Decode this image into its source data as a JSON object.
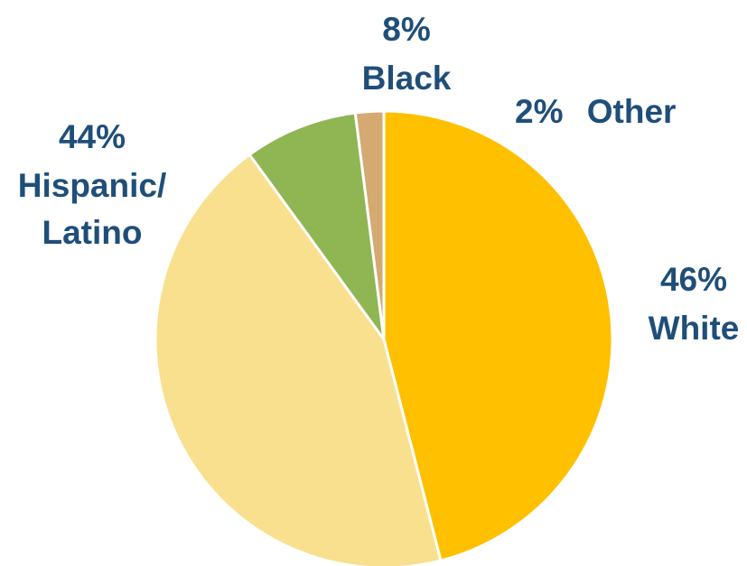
{
  "chart_data": {
    "type": "pie",
    "title": "",
    "slices": [
      {
        "pct_label": "46%",
        "name": "White",
        "name_line2": "",
        "value": 46,
        "color": "#ffc000",
        "inline": false
      },
      {
        "pct_label": "44%",
        "name": "Hispanic/",
        "name_line2": "Latino",
        "value": 44,
        "color": "#f8e08e",
        "inline": false
      },
      {
        "pct_label": "8%",
        "name": "Black",
        "name_line2": "",
        "value": 8,
        "color": "#8fb652",
        "inline": false
      },
      {
        "pct_label": "2%",
        "name": "Other",
        "name_line2": "",
        "value": 2,
        "color": "#d4aa72",
        "inline": true
      }
    ],
    "start_angle_deg": 0,
    "direction": "clockwise",
    "legend": "none, labels beside slices"
  }
}
